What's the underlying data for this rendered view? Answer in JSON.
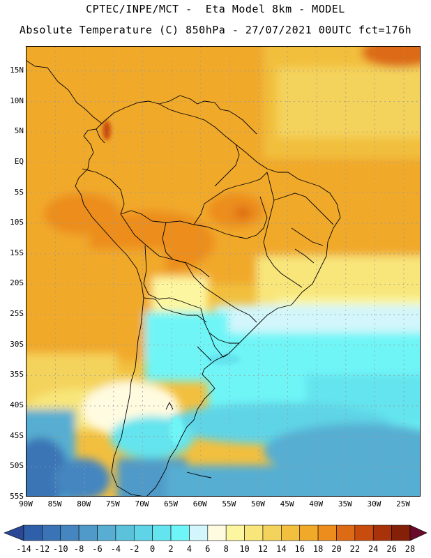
{
  "header": {
    "line1": "CPTEC/INPE/MCT -  Eta Model 8km - MODEL",
    "line2": "Absolute Temperature (C) 850hPa - 27/07/2021 00UTC fct=176h"
  },
  "map": {
    "lat_labels": [
      "15N",
      "10N",
      "5N",
      "EQ",
      "5S",
      "10S",
      "15S",
      "20S",
      "25S",
      "30S",
      "35S",
      "40S",
      "45S",
      "50S",
      "55S"
    ],
    "lon_labels": [
      "90W",
      "85W",
      "80W",
      "75W",
      "70W",
      "65W",
      "60W",
      "55W",
      "50W",
      "45W",
      "40W",
      "35W",
      "30W",
      "25W"
    ],
    "lat_range": [
      -55,
      19
    ],
    "lon_range": [
      -90,
      -22
    ],
    "grid": "dotted"
  },
  "colorbar": {
    "labels": [
      "-14",
      "-12",
      "-10",
      "-8",
      "-6",
      "-4",
      "-2",
      "0",
      "2",
      "4",
      "6",
      "8",
      "10",
      "12",
      "14",
      "16",
      "18",
      "20",
      "22",
      "24",
      "26",
      "28"
    ],
    "colors": [
      "#2a4896",
      "#2f5fa8",
      "#3a74b6",
      "#4586c0",
      "#4f9ac8",
      "#57aed2",
      "#5cc2dc",
      "#5fd4e6",
      "#64e4ee",
      "#6ff5f7",
      "#d2f6fb",
      "#fffbe0",
      "#fdf6a0",
      "#f8e67a",
      "#f4d35c",
      "#f2bf3e",
      "#f1a92a",
      "#ec8d1e",
      "#dd6a14",
      "#c84c0e",
      "#a8320a",
      "#852008",
      "#6a0a2a"
    ]
  }
}
